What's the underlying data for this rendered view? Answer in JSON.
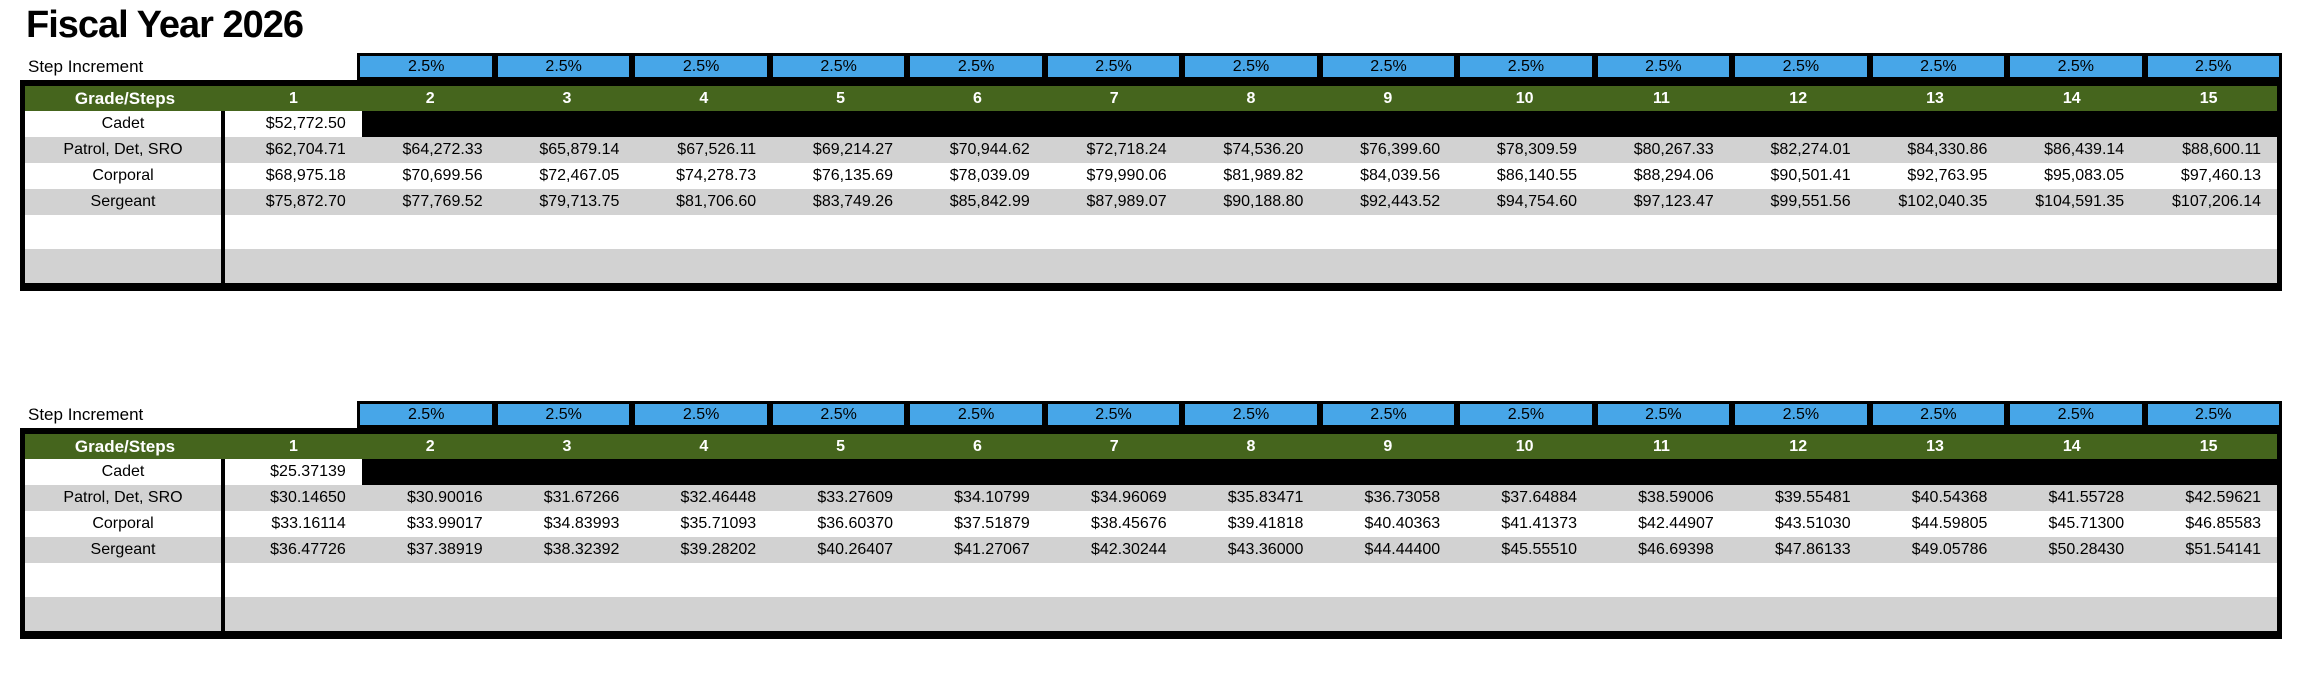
{
  "title": "Fiscal Year 2026",
  "colors": {
    "increment_blue": "#47A6E8",
    "header_green": "#45651D",
    "band_gray": "#D2D2D2",
    "blackout_black": "#000000"
  },
  "tables": [
    {
      "name": "annual-salary-table",
      "step_increment_label": "Step Increment",
      "increment_value": "2.5%",
      "increment_count": 14,
      "header_label": "Grade/Steps",
      "steps": [
        "1",
        "2",
        "3",
        "4",
        "5",
        "6",
        "7",
        "8",
        "9",
        "10",
        "11",
        "12",
        "13",
        "14",
        "15"
      ],
      "rows": [
        {
          "label": "Cadet",
          "blackout_rest": true,
          "values": [
            "$52,772.50"
          ]
        },
        {
          "label": "Patrol, Det, SRO",
          "values": [
            "$62,704.71",
            "$64,272.33",
            "$65,879.14",
            "$67,526.11",
            "$69,214.27",
            "$70,944.62",
            "$72,718.24",
            "$74,536.20",
            "$76,399.60",
            "$78,309.59",
            "$80,267.33",
            "$82,274.01",
            "$84,330.86",
            "$86,439.14",
            "$88,600.11"
          ]
        },
        {
          "label": "Corporal",
          "values": [
            "$68,975.18",
            "$70,699.56",
            "$72,467.05",
            "$74,278.73",
            "$76,135.69",
            "$78,039.09",
            "$79,990.06",
            "$81,989.82",
            "$84,039.56",
            "$86,140.55",
            "$88,294.06",
            "$90,501.41",
            "$92,763.95",
            "$95,083.05",
            "$97,460.13"
          ]
        },
        {
          "label": "Sergeant",
          "values": [
            "$75,872.70",
            "$77,769.52",
            "$79,713.75",
            "$81,706.60",
            "$83,749.26",
            "$85,842.99",
            "$87,989.07",
            "$90,188.80",
            "$92,443.52",
            "$94,754.60",
            "$97,123.47",
            "$99,551.56",
            "$102,040.35",
            "$104,591.35",
            "$107,206.14"
          ]
        }
      ],
      "empty_rows": 2
    },
    {
      "name": "hourly-rate-table",
      "step_increment_label": "Step Increment",
      "increment_value": "2.5%",
      "increment_count": 14,
      "header_label": "Grade/Steps",
      "steps": [
        "1",
        "2",
        "3",
        "4",
        "5",
        "6",
        "7",
        "8",
        "9",
        "10",
        "11",
        "12",
        "13",
        "14",
        "15"
      ],
      "rows": [
        {
          "label": "Cadet",
          "blackout_rest": true,
          "values": [
            "$25.37139"
          ]
        },
        {
          "label": "Patrol, Det, SRO",
          "values": [
            "$30.14650",
            "$30.90016",
            "$31.67266",
            "$32.46448",
            "$33.27609",
            "$34.10799",
            "$34.96069",
            "$35.83471",
            "$36.73058",
            "$37.64884",
            "$38.59006",
            "$39.55481",
            "$40.54368",
            "$41.55728",
            "$42.59621"
          ]
        },
        {
          "label": "Corporal",
          "values": [
            "$33.16114",
            "$33.99017",
            "$34.83993",
            "$35.71093",
            "$36.60370",
            "$37.51879",
            "$38.45676",
            "$39.41818",
            "$40.40363",
            "$41.41373",
            "$42.44907",
            "$43.51030",
            "$44.59805",
            "$45.71300",
            "$46.85583"
          ]
        },
        {
          "label": "Sergeant",
          "values": [
            "$36.47726",
            "$37.38919",
            "$38.32392",
            "$39.28202",
            "$40.26407",
            "$41.27067",
            "$42.30244",
            "$43.36000",
            "$44.44400",
            "$45.55510",
            "$46.69398",
            "$47.86133",
            "$49.05786",
            "$50.28430",
            "$51.54141"
          ]
        }
      ],
      "empty_rows": 2
    }
  ]
}
